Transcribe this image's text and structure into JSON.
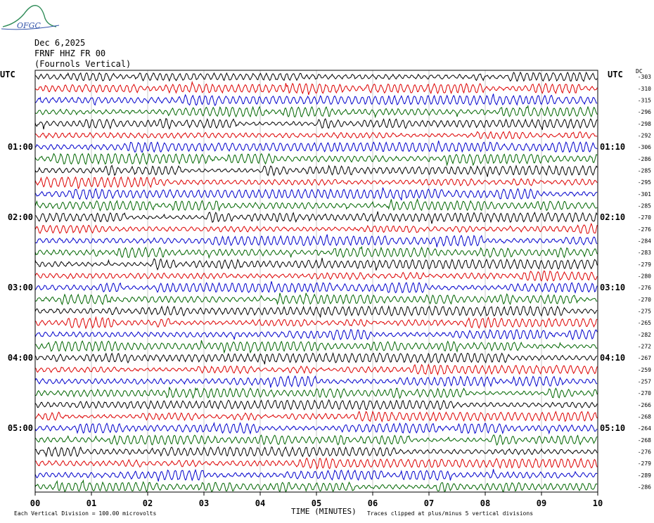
{
  "logo": {
    "text": "OFGC"
  },
  "header": {
    "date": "Dec 6,2025",
    "station": "FRNF HHZ FR 00",
    "location": "(Fournols Vertical)"
  },
  "left_axis_title": "UTC",
  "right_axis_title": "UTC",
  "dc_title": "DC",
  "footer": {
    "scale_note": "Each Vertical Division =  100.00 microvolts",
    "clip_note": "Traces clipped at plus/minus 5 vertical divisions",
    "xlabel": "TIME (MINUTES)"
  },
  "chart_data": {
    "type": "line",
    "title": "",
    "xlabel": "TIME (MINUTES)",
    "ylabel": "UTC",
    "x_ticks": [
      "00",
      "01",
      "02",
      "03",
      "04",
      "05",
      "06",
      "07",
      "08",
      "09",
      "10"
    ],
    "xlim": [
      0,
      10
    ],
    "grid": true,
    "trace_count": 36,
    "trace_colors": [
      "#000000",
      "#dd0000",
      "#0000cc",
      "#006600"
    ],
    "left_time_labels": [
      {
        "row": 6,
        "label": "01:00"
      },
      {
        "row": 12,
        "label": "02:00"
      },
      {
        "row": 18,
        "label": "03:00"
      },
      {
        "row": 24,
        "label": "04:00"
      },
      {
        "row": 30,
        "label": "05:00"
      }
    ],
    "right_time_labels": [
      {
        "row": 6,
        "label": "01:10"
      },
      {
        "row": 12,
        "label": "02:10"
      },
      {
        "row": 18,
        "label": "03:10"
      },
      {
        "row": 24,
        "label": "04:10"
      },
      {
        "row": 30,
        "label": "05:10"
      }
    ],
    "dc_offsets": [
      "-303",
      "-310",
      "-315",
      "-296",
      "-298",
      "-292",
      "-306",
      "-286",
      "-285",
      "-295",
      "-301",
      "-285",
      "-270",
      "-276",
      "-284",
      "-283",
      "-279",
      "-280",
      "-276",
      "-270",
      "-275",
      "-265",
      "-282",
      "-272",
      "-267",
      "-259",
      "-257",
      "-270",
      "-266",
      "-268",
      "-264",
      "-268",
      "-276",
      "-279",
      "-289",
      "-286"
    ]
  }
}
